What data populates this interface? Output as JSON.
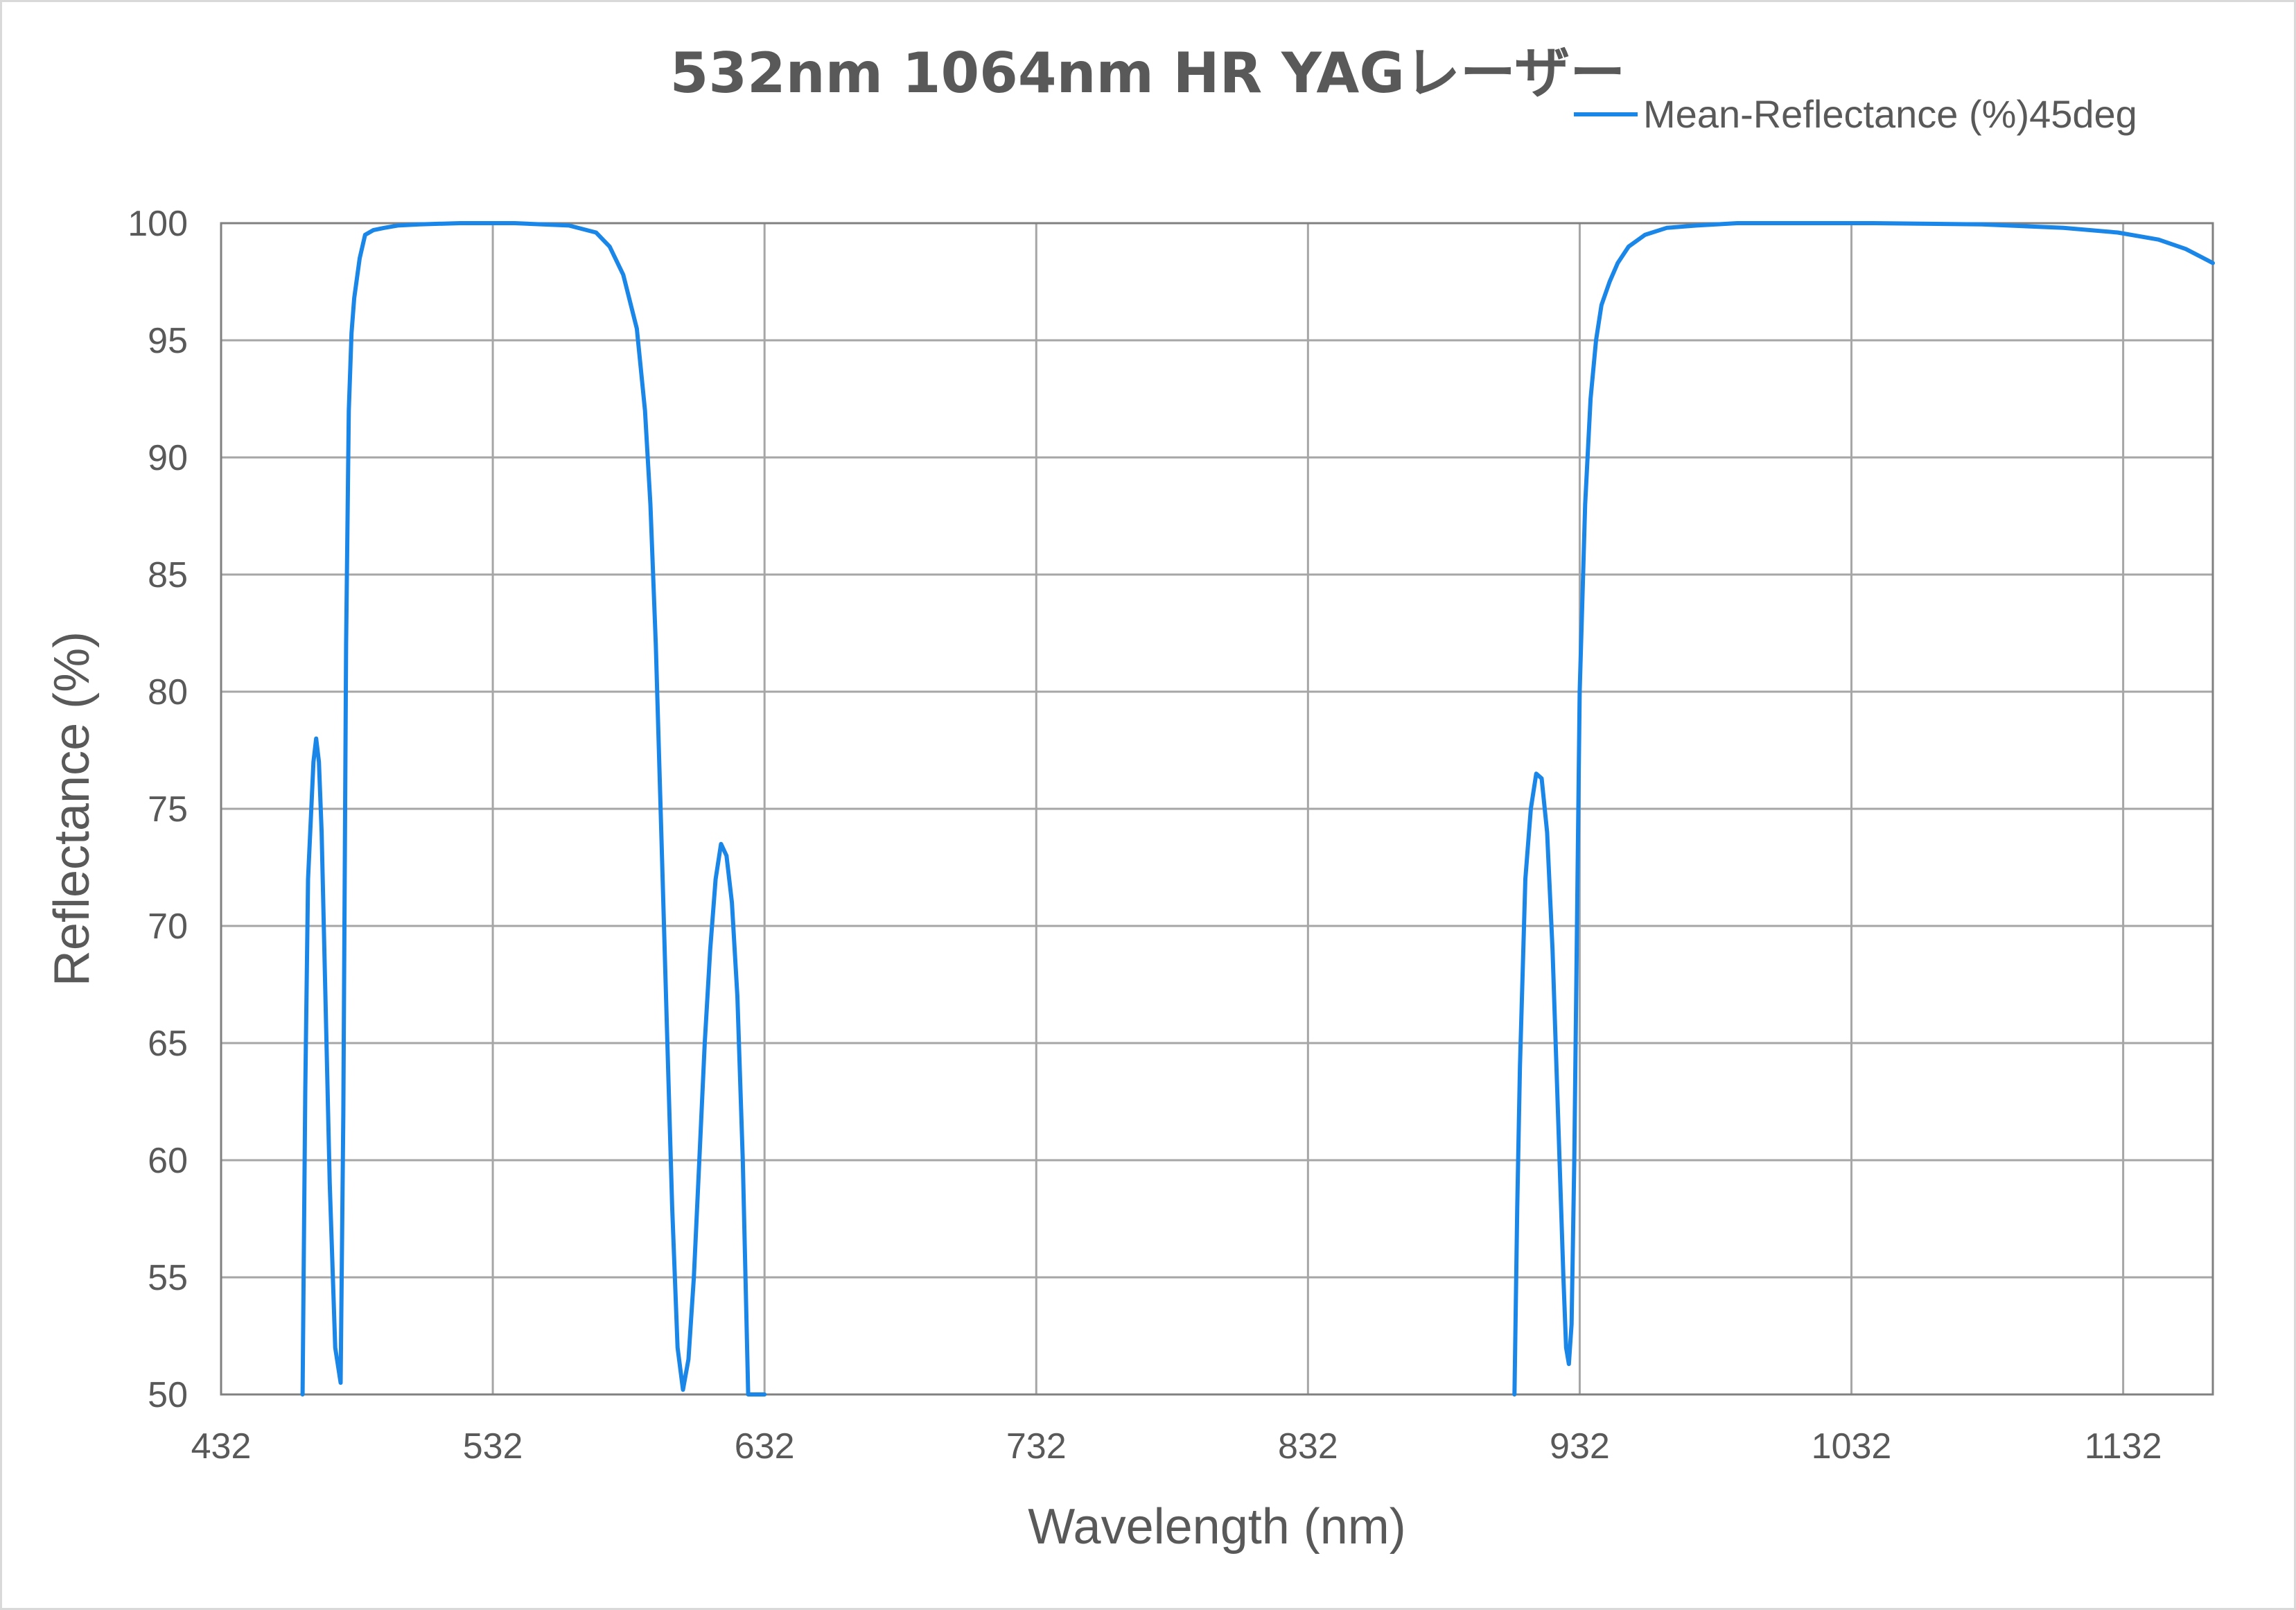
{
  "chart_data": {
    "type": "line",
    "title": "532nm 1064nm HR YAGレーザー",
    "xlabel": "Wavelength (nm)",
    "ylabel": "Reflectance (%)",
    "xlim": [
      432,
      1165
    ],
    "ylim": [
      50,
      100
    ],
    "x_ticks": [
      432,
      532,
      632,
      732,
      832,
      932,
      1032,
      1132
    ],
    "y_ticks": [
      50,
      55,
      60,
      65,
      70,
      75,
      80,
      85,
      90,
      95,
      100
    ],
    "grid": true,
    "legend_position": "top-right",
    "series": [
      {
        "name": "Mean-Reflectance (%)45deg",
        "color": "#1a86e8",
        "segments": [
          {
            "x": [
              462,
              463,
              464,
              466,
              467,
              468,
              469,
              470,
              472,
              474,
              476,
              477,
              478,
              479,
              480,
              481,
              483,
              485,
              488,
              492,
              497,
              505,
              520,
              540,
              560,
              570,
              575,
              580,
              585,
              588,
              590,
              592,
              594,
              596,
              598,
              600,
              602,
              604,
              606
            ],
            "y": [
              50,
              63,
              72,
              77,
              78,
              77,
              74,
              69,
              59,
              52,
              50.5,
              62,
              82,
              92,
              95.3,
              96.8,
              98.5,
              99.5,
              99.7,
              99.8,
              99.9,
              99.95,
              100,
              100,
              99.9,
              99.6,
              99,
              97.8,
              95.5,
              92,
              88,
              82,
              74,
              66,
              58,
              52,
              50.2,
              51.5,
              55
            ]
          },
          {
            "x": [
              606,
              608,
              610,
              612,
              614,
              616,
              618,
              620,
              622,
              624,
              626,
              628,
              630,
              632
            ],
            "y": [
              55,
              60,
              65,
              69,
              72,
              73.5,
              73,
              71,
              67,
              60,
              50,
              50,
              50,
              50
            ]
          },
          {
            "x": [
              908,
              909,
              910,
              912,
              914,
              916,
              918,
              920,
              922,
              924,
              926,
              927,
              928,
              929,
              930,
              931,
              932,
              934,
              936,
              938,
              940,
              943,
              946,
              950,
              956,
              964,
              975,
              990,
              1010,
              1040,
              1080,
              1110,
              1130,
              1145,
              1155,
              1160,
              1165
            ],
            "y": [
              50,
              58,
              64,
              72,
              75,
              76.5,
              76.3,
              74,
              69,
              62,
              55,
              52,
              51.3,
              53,
              60,
              70,
              80,
              88,
              92.5,
              95,
              96.5,
              97.5,
              98.3,
              99,
              99.5,
              99.8,
              99.9,
              100,
              100,
              100,
              99.95,
              99.8,
              99.6,
              99.3,
              98.9,
              98.6,
              98.3
            ]
          }
        ]
      }
    ]
  }
}
